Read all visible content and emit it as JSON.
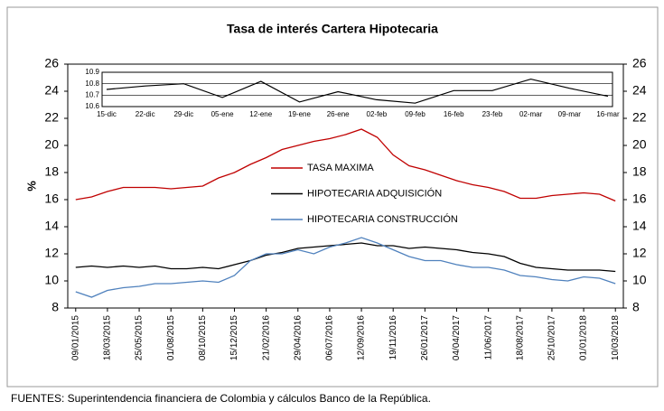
{
  "chart_data": [
    {
      "type": "line",
      "title": "Tasa de interés Cartera Hipotecaria",
      "ylabel": "%",
      "source": "FUENTES: Superintendencia financiera de Colombia y cálculos Banco de la República.",
      "categories": [
        "09/01/2015",
        null,
        "18/03/2015",
        null,
        "25/05/2015",
        null,
        "01/08/2015",
        null,
        "08/10/2015",
        null,
        "15/12/2015",
        null,
        "21/02/2016",
        null,
        "29/04/2016",
        null,
        "06/07/2016",
        null,
        "12/09/2016",
        null,
        "19/11/2016",
        null,
        "26/01/2017",
        null,
        "04/04/2017",
        null,
        "11/06/2017",
        null,
        "18/08/2017",
        null,
        "25/10/2017",
        null,
        "01/01/2018",
        null,
        "10/03/2018"
      ],
      "series": [
        {
          "name": "TASA MAXIMA",
          "color": "#c00000",
          "values": [
            16.0,
            16.2,
            16.6,
            16.9,
            16.9,
            16.9,
            16.8,
            16.9,
            17.0,
            17.6,
            18.0,
            18.6,
            19.1,
            19.7,
            20.0,
            20.3,
            20.5,
            20.8,
            21.2,
            20.6,
            19.3,
            18.5,
            18.2,
            17.8,
            17.4,
            17.1,
            16.9,
            16.6,
            16.1,
            16.1,
            16.3,
            16.4,
            16.5,
            16.4,
            15.9
          ]
        },
        {
          "name": "HIPOTECARIA ADQUISICIÓN",
          "color": "#000000",
          "values": [
            11.0,
            11.1,
            11.0,
            11.1,
            11.0,
            11.1,
            10.9,
            10.9,
            11.0,
            10.9,
            11.2,
            11.5,
            11.9,
            12.1,
            12.4,
            12.5,
            12.6,
            12.7,
            12.8,
            12.6,
            12.6,
            12.4,
            12.5,
            12.4,
            12.3,
            12.1,
            12.0,
            11.8,
            11.3,
            11.0,
            10.9,
            10.8,
            10.8,
            10.8,
            10.7
          ]
        },
        {
          "name": "HIPOTECARIA CONSTRUCCIÓN",
          "color": "#4f81bd",
          "values": [
            9.2,
            8.8,
            9.3,
            9.5,
            9.6,
            9.8,
            9.8,
            9.9,
            10.0,
            9.9,
            10.4,
            11.5,
            12.0,
            12.0,
            12.3,
            12.0,
            12.5,
            12.8,
            13.2,
            12.8,
            12.3,
            11.8,
            11.5,
            11.5,
            11.2,
            11.0,
            11.0,
            10.8,
            10.4,
            10.3,
            10.1,
            10.0,
            10.3,
            10.2,
            9.8
          ]
        }
      ],
      "ylim": [
        8,
        26
      ],
      "yticks": [
        8,
        10,
        12,
        14,
        16,
        18,
        20,
        22,
        24,
        26
      ],
      "y2lim": [
        8,
        26
      ],
      "y2ticks": [
        8,
        10,
        12,
        14,
        16,
        18,
        20,
        22,
        24,
        26
      ],
      "legend": "center",
      "grid": false
    },
    {
      "type": "line",
      "categories": [
        "15-dic",
        "22-dic",
        "29-dic",
        "05-ene",
        "12-ene",
        "19-ene",
        "26-ene",
        "02-feb",
        "09-feb",
        "16-feb",
        "23-feb",
        "02-mar",
        "09-mar",
        "16-mar"
      ],
      "series": [
        {
          "color": "#000000",
          "values": [
            10.75,
            10.78,
            10.8,
            10.68,
            10.82,
            10.64,
            10.73,
            10.66,
            10.63,
            10.74,
            10.74,
            10.84,
            10.76,
            10.69
          ]
        }
      ],
      "ylim": [
        10.6,
        10.9
      ],
      "yticks": [
        10.6,
        10.7,
        10.8,
        10.9
      ],
      "grid": true
    }
  ]
}
